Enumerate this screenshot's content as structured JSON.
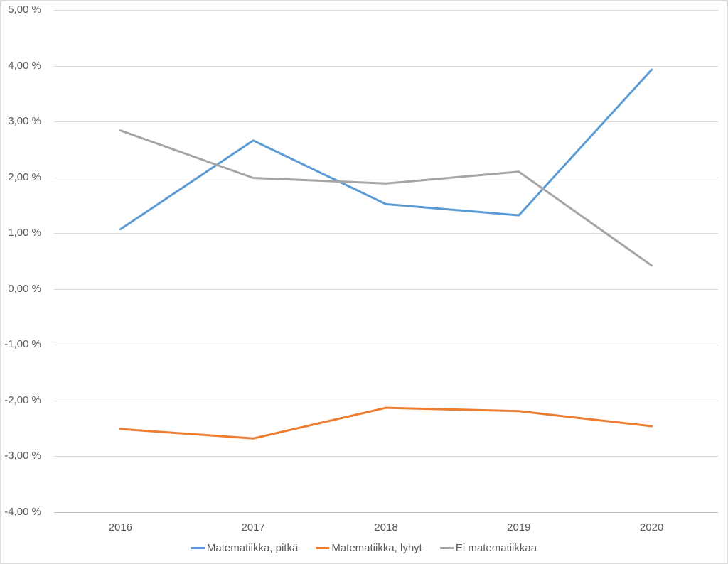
{
  "chart_data": {
    "type": "line",
    "categories": [
      "2016",
      "2017",
      "2018",
      "2019",
      "2020"
    ],
    "series": [
      {
        "name": "Matematiikka, pitkä",
        "color": "#5B9BD5",
        "values": [
          1.07,
          2.66,
          1.52,
          1.32,
          3.93
        ]
      },
      {
        "name": "Matematiikka, lyhyt",
        "color": "#ED7D31",
        "values": [
          -2.51,
          -2.68,
          -2.13,
          -2.19,
          -2.46
        ]
      },
      {
        "name": "Ei matematiikkaa",
        "color": "#A5A5A5",
        "values": [
          2.84,
          1.99,
          1.89,
          2.1,
          0.42
        ]
      }
    ],
    "y_axis": {
      "min": -4,
      "max": 5,
      "step": 1,
      "tick_labels": [
        "5,00 %",
        "4,00 %",
        "3,00 %",
        "2,00 %",
        "1,00 %",
        "0,00 %",
        "-1,00 %",
        "-2,00 %",
        "-3,00 %",
        "-4,00 %"
      ]
    },
    "legend_position": "bottom",
    "grid": true,
    "styles": {
      "text_color": "#595959",
      "gridline_color": "#DADADA",
      "axis_line_color": "#BFBFBF",
      "frame_border_color": "#DBDBDB",
      "background": "#FFFFFF"
    }
  }
}
